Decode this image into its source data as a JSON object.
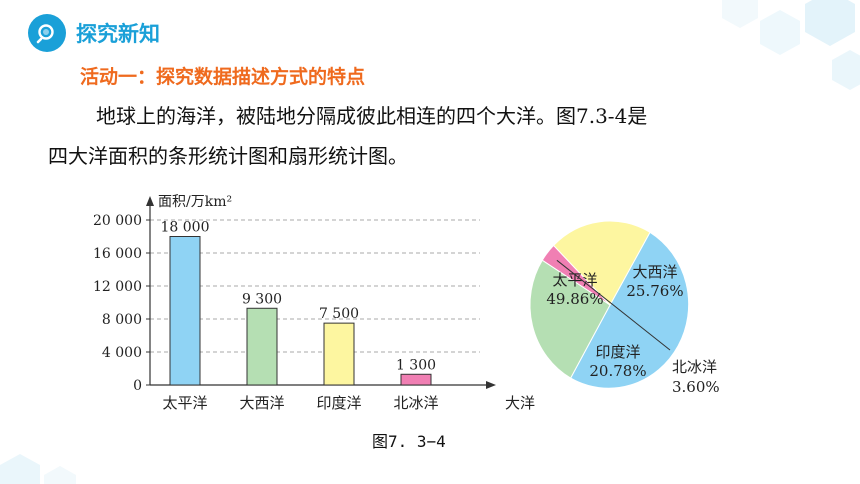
{
  "header": {
    "title": "探究新知",
    "icon": "search-icon"
  },
  "activity_title": "活动一：探究数据描述方式的特点",
  "paragraph": {
    "line1": "地球上的海洋，被陆地分隔成彼此相连的四个大洋。图7.3-4是",
    "line2": "四大洋面积的条形统计图和扇形统计图。"
  },
  "caption": "图7. 3−4",
  "chart_data": [
    {
      "type": "bar",
      "ylabel": "面积/万km²",
      "xlabel": "大洋",
      "categories": [
        "太平洋",
        "大西洋",
        "印度洋",
        "北冰洋"
      ],
      "values": [
        18000,
        9300,
        7500,
        1300
      ],
      "value_labels": [
        "18 000",
        "9 300",
        "7 500",
        "1 300"
      ],
      "yticks": [
        "0",
        "4 000",
        "8 000",
        "12 000",
        "16 000",
        "20 000"
      ],
      "ylim": [
        0,
        20000
      ],
      "grid": true,
      "colors": [
        "#8fd3f4",
        "#b5dfb3",
        "#fdf6a0",
        "#f07fb3"
      ]
    },
    {
      "type": "pie",
      "slices": [
        {
          "name": "太平洋",
          "label": "49.86%",
          "value": 49.86,
          "color": "#8fd3f4"
        },
        {
          "name": "大西洋",
          "label": "25.76%",
          "value": 25.76,
          "color": "#b5dfb3"
        },
        {
          "name": "北冰洋",
          "label": "3.60%",
          "value": 3.6,
          "color": "#f07fb3"
        },
        {
          "name": "印度洋",
          "label": "20.78%",
          "value": 20.78,
          "color": "#fdf6a0"
        }
      ]
    }
  ]
}
